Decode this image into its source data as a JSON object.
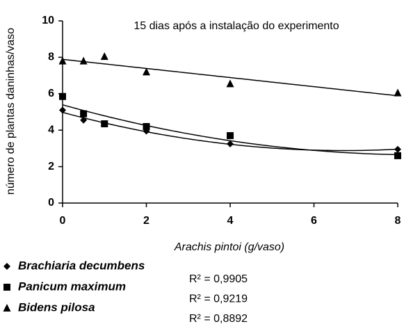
{
  "chart_data": {
    "type": "scatter",
    "title": "15 dias após a instalação do experimento",
    "x_label": "Arachis pintoi (g/vaso)",
    "y_label": "número de plantas daninhas/vaso",
    "x": [
      0,
      0.5,
      1,
      2,
      4,
      8
    ],
    "series": [
      {
        "name": "Brachiaria decumbens",
        "color": "#000000",
        "marker": "diamond",
        "trendline_order": 2,
        "r2_label": "R² = 0,9905",
        "values": [
          5.1,
          4.55,
          4.35,
          3.95,
          3.25,
          2.95
        ]
      },
      {
        "name": "Panicum maximum",
        "color": "#000000",
        "marker": "square",
        "trendline_order": 2,
        "r2_label": "R² = 0,9219",
        "values": [
          5.85,
          4.9,
          4.35,
          4.2,
          3.7,
          2.6
        ]
      },
      {
        "name": "Bidens pilosa",
        "color": "#000000",
        "marker": "triangle",
        "trendline_order": 1,
        "r2_label": "R² = 0,8892",
        "values": [
          7.8,
          7.8,
          8.05,
          7.2,
          6.55,
          6.05
        ]
      }
    ],
    "xlim": [
      0,
      8
    ],
    "xticks": [
      0,
      2,
      4,
      6,
      8
    ],
    "ylim": [
      0,
      10
    ],
    "yticks": [
      0,
      2,
      4,
      6,
      8,
      10
    ],
    "grid": false,
    "legend": "bottom-left"
  }
}
